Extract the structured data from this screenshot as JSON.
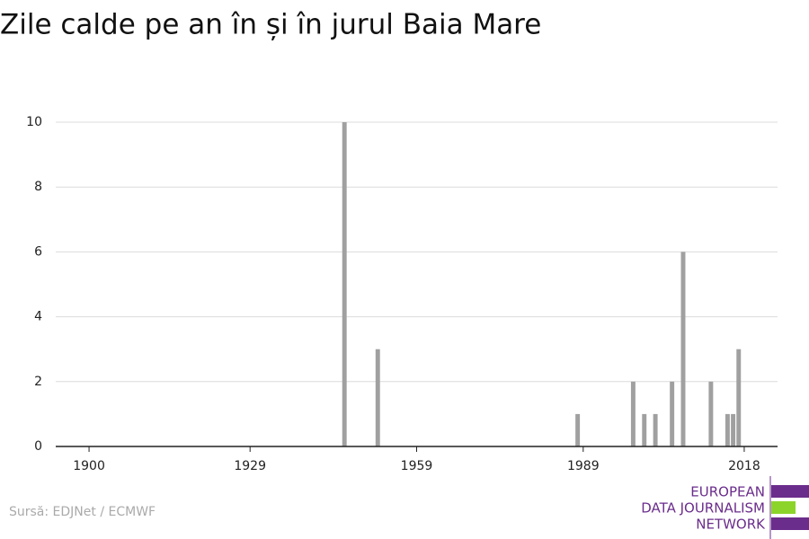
{
  "chart_data": {
    "type": "bar",
    "title": "Zile calde pe an în și în jurul Baia Mare",
    "x": [
      1946,
      1952,
      1988,
      1998,
      2000,
      2002,
      2005,
      2007,
      2012,
      2015,
      2016,
      2017
    ],
    "values": [
      10,
      3,
      1,
      2,
      1,
      1,
      2,
      6,
      2,
      1,
      1,
      3
    ],
    "color": "#a0a0a0",
    "xlim": [
      1894,
      2024
    ],
    "xticks": [
      1900,
      1929,
      1959,
      1989,
      2018
    ],
    "ylim": [
      0,
      10
    ],
    "yticks": [
      0,
      2,
      4,
      6,
      8,
      10
    ],
    "grid": true
  },
  "source": "Sursă: EDJNet / ECMWF",
  "logo": [
    "EUROPEAN",
    "DATA JOURNALISM",
    "NETWORK"
  ]
}
